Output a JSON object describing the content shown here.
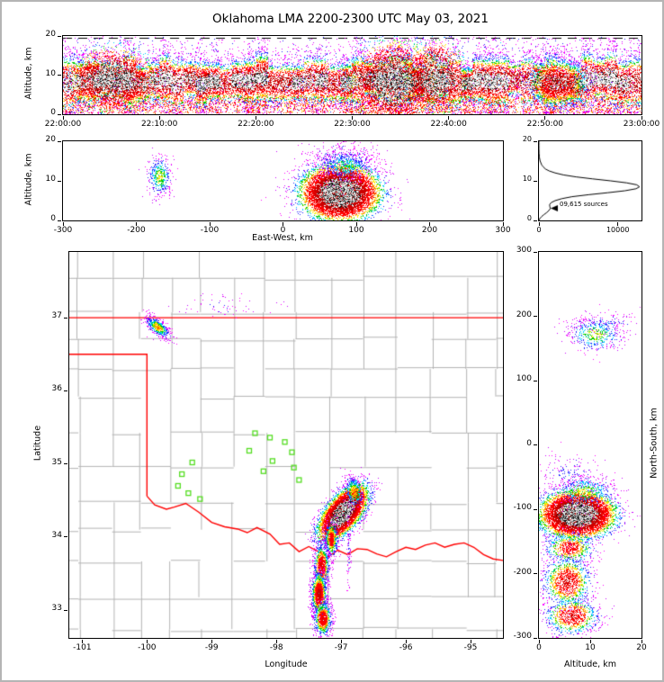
{
  "title": "Oklahoma LMA 2200-2300 UTC May 03, 2021",
  "colors": {
    "background": "#ffffff",
    "frame": "#b5b5b5",
    "axis": "#000000",
    "county_lines": "#b3b3b3",
    "state_border": "#ff0000",
    "station_marker": "#55dd22",
    "histogram_line": "#000000",
    "density_colormap_low_to_high": [
      "#cc00ff",
      "#2222ff",
      "#00ccff",
      "#00cc00",
      "#ffee00",
      "#ff8800",
      "#ff0000",
      "#cc0000"
    ],
    "core_speckle": [
      "#ffffff",
      "#ececec",
      "#cfcfcf",
      "#a8a8a8",
      "#6e6e6e",
      "#2a2a2a",
      "#000000"
    ]
  },
  "chart_data": [
    {
      "id": "time-height",
      "type": "scatter",
      "title": "",
      "xlabel": "",
      "ylabel": "Altitude, km",
      "xlim": [
        0,
        3600
      ],
      "xticks": [
        0,
        600,
        1200,
        1800,
        2400,
        3000,
        3600
      ],
      "xtick_labels": [
        "22:00:00",
        "22:10:00",
        "22:20:00",
        "22:30:00",
        "22:40:00",
        "22:50:00",
        "23:00:00"
      ],
      "ylim": [
        0,
        20
      ],
      "yticks": [
        0,
        10,
        20
      ],
      "ytick_labels": [
        "0",
        "10",
        "20"
      ],
      "dashed_top_line": true,
      "band": {
        "n": 24000,
        "center_km": 8.5,
        "sigma_km": 2.1,
        "low_tail_n": 3200,
        "fringe_n": 1500
      },
      "plumes": [
        {
          "cx": 310,
          "cy": 9.0,
          "sx": 110,
          "sy": 3.6,
          "n": 2200,
          "peak": 1
        },
        {
          "cx": 2060,
          "cy": 8.2,
          "sx": 120,
          "sy": 4.6,
          "n": 3200,
          "peak": 1
        },
        {
          "cx": 2320,
          "cy": 9.3,
          "sx": 80,
          "sy": 4.2,
          "n": 1700,
          "peak": 1
        },
        {
          "cx": 3080,
          "cy": 7.8,
          "sx": 100,
          "sy": 3.4,
          "n": 1400,
          "peak": 0.95
        }
      ]
    },
    {
      "id": "east-west-altitude",
      "type": "scatter",
      "xlabel": "East-West, km",
      "ylabel": "Altitude, km",
      "xlim": [
        -300,
        300
      ],
      "xticks": [
        -300,
        -200,
        -100,
        0,
        100,
        200,
        300
      ],
      "xtick_labels": [
        "-300",
        "-200",
        "-100",
        "0",
        "100",
        "200",
        "300"
      ],
      "ylim": [
        0,
        20
      ],
      "yticks": [
        0,
        10,
        20
      ],
      "ytick_labels": [
        "0",
        "10",
        "20"
      ],
      "clusters": [
        {
          "cx": 78,
          "cy": 7.0,
          "sx": 24,
          "sy": 3.1,
          "n": 9500,
          "peak": 1
        },
        {
          "cx": 85,
          "cy": 13.8,
          "sx": 20,
          "sy": 2.0,
          "n": 650,
          "peak": 0.33
        },
        {
          "cx": 80,
          "cy": 16.5,
          "sx": 26,
          "sy": 2.2,
          "n": 220,
          "peak": 0.16
        },
        {
          "cx": -168,
          "cy": 11.2,
          "sx": 8.5,
          "sy": 2.6,
          "n": 430,
          "peak": 0.42
        }
      ]
    },
    {
      "id": "source-histogram",
      "type": "line",
      "xlabel": "",
      "ylabel": "",
      "xlim": [
        0,
        13000
      ],
      "xticks": [
        0,
        10000
      ],
      "xtick_labels": [
        "0",
        "10000"
      ],
      "ylim": [
        0,
        20
      ],
      "yticks": [
        0,
        10,
        20
      ],
      "ytick_labels": [
        "0",
        "10",
        "20"
      ],
      "annotation": "09,615 sources",
      "curve_alt_km_vs_sources": [
        [
          0,
          0
        ],
        [
          0.5,
          120
        ],
        [
          1,
          350
        ],
        [
          1.5,
          650
        ],
        [
          2,
          1000
        ],
        [
          2.5,
          1250
        ],
        [
          3,
          1450
        ],
        [
          3.5,
          1380
        ],
        [
          4,
          1350
        ],
        [
          4.5,
          1550
        ],
        [
          5,
          2050
        ],
        [
          5.5,
          2900
        ],
        [
          6,
          4200
        ],
        [
          6.5,
          6300
        ],
        [
          7,
          8700
        ],
        [
          7.5,
          10900
        ],
        [
          8,
          12300
        ],
        [
          8.5,
          12750
        ],
        [
          9,
          12400
        ],
        [
          9.5,
          11100
        ],
        [
          10,
          9100
        ],
        [
          10.5,
          6800
        ],
        [
          11,
          4700
        ],
        [
          11.5,
          3100
        ],
        [
          12,
          2050
        ],
        [
          12.5,
          1300
        ],
        [
          13,
          820
        ],
        [
          13.5,
          560
        ],
        [
          14,
          360
        ],
        [
          15,
          150
        ],
        [
          16,
          55
        ],
        [
          17,
          18
        ],
        [
          18,
          5
        ],
        [
          19,
          1
        ],
        [
          20,
          0
        ]
      ]
    },
    {
      "id": "plan-view",
      "type": "scatter",
      "xlabel": "Longitude",
      "ylabel": "Latitude",
      "xlim": [
        -101.2,
        -94.5
      ],
      "xticks": [
        -101,
        -100,
        -99,
        -98,
        -97,
        -96,
        -95
      ],
      "xtick_labels": [
        "-101",
        "-100",
        "-99",
        "-98",
        "-97",
        "-96",
        "-95"
      ],
      "ylim": [
        32.62,
        37.9
      ],
      "yticks": [
        33,
        34,
        35,
        36,
        37
      ],
      "ytick_labels": [
        "33",
        "34",
        "35",
        "36",
        "37"
      ],
      "clusters": [
        {
          "cx": -96.97,
          "cy": 34.33,
          "sx": 0.21,
          "sy": 0.1,
          "rot": 45,
          "n": 8500,
          "peak": 1
        },
        {
          "cx": -96.8,
          "cy": 34.62,
          "sx": 0.07,
          "sy": 0.11,
          "rot": 15,
          "n": 450,
          "peak": 0.5
        },
        {
          "cx": -97.15,
          "cy": 33.97,
          "sx": 0.05,
          "sy": 0.12,
          "rot": 0,
          "n": 650,
          "peak": 0.72
        },
        {
          "cx": -97.3,
          "cy": 33.6,
          "sx": 0.06,
          "sy": 0.16,
          "rot": 0,
          "n": 1000,
          "peak": 0.82
        },
        {
          "cx": -97.34,
          "cy": 33.22,
          "sx": 0.06,
          "sy": 0.15,
          "rot": 0,
          "n": 1400,
          "peak": 0.92
        },
        {
          "cx": -97.28,
          "cy": 32.88,
          "sx": 0.07,
          "sy": 0.12,
          "rot": 0,
          "n": 800,
          "peak": 0.8
        },
        {
          "cx": -99.83,
          "cy": 36.87,
          "sx": 0.11,
          "sy": 0.05,
          "rot": -35,
          "n": 550,
          "peak": 0.52
        },
        {
          "cx": -98.75,
          "cy": 37.15,
          "sx": 0.35,
          "sy": 0.1,
          "rot": 0,
          "n": 60,
          "peak": 0.12
        },
        {
          "cx": -96.88,
          "cy": 33.8,
          "sx": 0.015,
          "sy": 0.28,
          "rot": 0,
          "n": 90,
          "peak": 0.14
        }
      ],
      "stations_lon_lat": [
        [
          -98.33,
          35.42
        ],
        [
          -98.1,
          35.36
        ],
        [
          -97.87,
          35.3
        ],
        [
          -98.42,
          35.18
        ],
        [
          -97.76,
          35.16
        ],
        [
          -98.06,
          35.04
        ],
        [
          -97.73,
          34.95
        ],
        [
          -98.2,
          34.9
        ],
        [
          -97.65,
          34.78
        ],
        [
          -99.3,
          35.02
        ],
        [
          -99.46,
          34.86
        ],
        [
          -99.52,
          34.7
        ],
        [
          -99.36,
          34.6
        ],
        [
          -99.18,
          34.52
        ]
      ],
      "state_border": [
        [
          [
            -101.2,
            37.0
          ],
          [
            -94.5,
            37.0
          ]
        ],
        [
          [
            -101.2,
            36.5
          ],
          [
            -100.0,
            36.5
          ],
          [
            -100.0,
            34.56
          ]
        ],
        [
          [
            -100.0,
            34.56
          ],
          [
            -99.88,
            34.44
          ],
          [
            -99.7,
            34.38
          ],
          [
            -99.58,
            34.41
          ],
          [
            -99.4,
            34.46
          ],
          [
            -99.2,
            34.34
          ],
          [
            -99.0,
            34.2
          ],
          [
            -98.8,
            34.14
          ],
          [
            -98.6,
            34.11
          ],
          [
            -98.45,
            34.06
          ],
          [
            -98.3,
            34.13
          ],
          [
            -98.1,
            34.04
          ],
          [
            -97.95,
            33.9
          ],
          [
            -97.8,
            33.92
          ],
          [
            -97.65,
            33.8
          ],
          [
            -97.5,
            33.87
          ],
          [
            -97.35,
            33.8
          ],
          [
            -97.2,
            33.73
          ],
          [
            -97.05,
            33.82
          ],
          [
            -96.9,
            33.76
          ],
          [
            -96.75,
            33.84
          ],
          [
            -96.6,
            33.83
          ],
          [
            -96.45,
            33.77
          ],
          [
            -96.3,
            33.73
          ],
          [
            -96.15,
            33.8
          ],
          [
            -96.0,
            33.86
          ],
          [
            -95.85,
            33.83
          ],
          [
            -95.7,
            33.89
          ],
          [
            -95.55,
            33.92
          ],
          [
            -95.4,
            33.86
          ],
          [
            -95.25,
            33.9
          ],
          [
            -95.1,
            33.92
          ],
          [
            -94.95,
            33.86
          ],
          [
            -94.8,
            33.76
          ],
          [
            -94.65,
            33.7
          ],
          [
            -94.5,
            33.68
          ]
        ]
      ]
    },
    {
      "id": "north-south-altitude",
      "type": "scatter",
      "xlabel": "Altitude, km",
      "ylabel": "North-South, km",
      "xlim": [
        0,
        20
      ],
      "xticks": [
        0,
        10,
        20
      ],
      "xtick_labels": [
        "0",
        "10",
        "20"
      ],
      "ylim": [
        -300,
        300
      ],
      "yticks": [
        -300,
        -200,
        -100,
        0,
        100,
        200,
        300
      ],
      "ytick_labels": [
        "-300",
        "-200",
        "-100",
        "0",
        "100",
        "200",
        "300"
      ],
      "clusters": [
        {
          "cx": 7.5,
          "cy": -108,
          "sx": 3.2,
          "sy": 16,
          "n": 8500,
          "peak": 1
        },
        {
          "cx": 9.0,
          "cy": -72,
          "sx": 3.0,
          "sy": 12,
          "n": 500,
          "peak": 0.42
        },
        {
          "cx": 6.0,
          "cy": -45,
          "sx": 3.0,
          "sy": 16,
          "n": 180,
          "peak": 0.16
        },
        {
          "cx": 6.0,
          "cy": -160,
          "sx": 2.6,
          "sy": 13,
          "n": 650,
          "peak": 0.7
        },
        {
          "cx": 5.5,
          "cy": -213,
          "sx": 2.4,
          "sy": 20,
          "n": 1150,
          "peak": 0.85
        },
        {
          "cx": 6.5,
          "cy": -266,
          "sx": 2.7,
          "sy": 15,
          "n": 850,
          "peak": 0.82
        },
        {
          "cx": 11.0,
          "cy": 172,
          "sx": 2.7,
          "sy": 13,
          "n": 480,
          "peak": 0.42
        },
        {
          "cx": 13.0,
          "cy": 188,
          "sx": 3.6,
          "sy": 9,
          "n": 130,
          "peak": 0.18
        }
      ]
    }
  ]
}
